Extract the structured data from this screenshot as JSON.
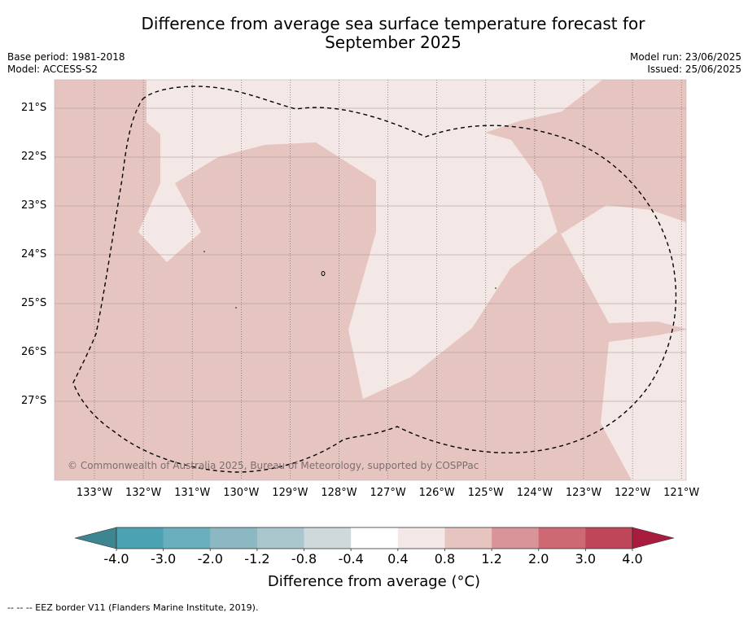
{
  "title_line1": "Difference from average sea surface temperature forecast for",
  "title_line2": "September 2025",
  "left_info": {
    "base_period": "Base period: 1981-2018",
    "model": "Model: ACCESS-S2"
  },
  "right_info": {
    "model_run": "Model run: 23/06/2025",
    "issued": "Issued: 25/06/2025"
  },
  "map": {
    "lat_labels": [
      "21°S",
      "22°S",
      "23°S",
      "24°S",
      "25°S",
      "26°S",
      "27°S"
    ],
    "lon_labels": [
      "133°W",
      "132°W",
      "131°W",
      "130°W",
      "129°W",
      "128°W",
      "127°W",
      "126°W",
      "125°W",
      "124°W",
      "123°W",
      "122°W",
      "121°W"
    ],
    "copyright": "© Commonwealth of Australia 2025, Bureau of Meteorology, supported by COSPPac",
    "colors": {
      "band_0p8_1p2": "#e6c5c1",
      "band_0p4_0p8": "#f4e8e6",
      "boundary": "#000000"
    }
  },
  "colorbar": {
    "labels": [
      "-4.0",
      "-3.0",
      "-2.0",
      "-1.2",
      "-0.8",
      "-0.4",
      "0.4",
      "0.8",
      "1.2",
      "2.0",
      "3.0",
      "4.0"
    ],
    "colors": [
      "#3d8590",
      "#4ba2b2",
      "#6aafbd",
      "#8bb8c3",
      "#a9c6cc",
      "#cfd9dc",
      "#ffffff",
      "#f4e8e6",
      "#e6c5c1",
      "#d9949a",
      "#cc6973",
      "#bf4658",
      "#a81d3d"
    ],
    "title": "Difference from average (°C)"
  },
  "footnote": "--  --  -- EEZ border V11 (Flanders Marine Institute, 2019)."
}
